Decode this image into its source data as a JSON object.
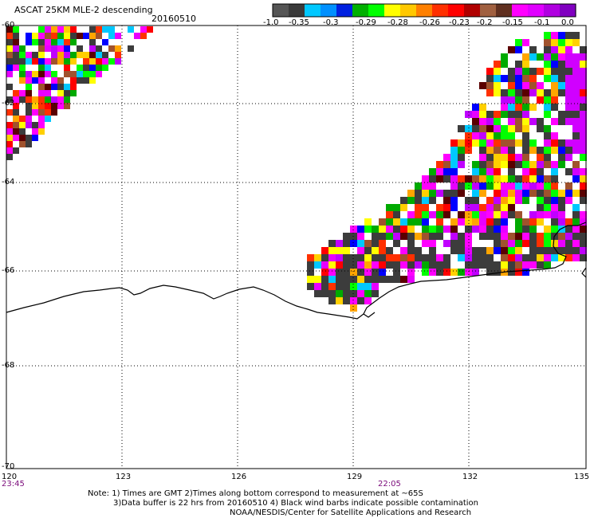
{
  "header": {
    "title": "ASCAT 25KM MLE-2 descending",
    "date": "20160510"
  },
  "colorbar": {
    "labels": [
      "-1.0",
      "-0.35",
      "-0.3",
      "-0.29",
      "-0.28",
      "-0.26",
      "-0.23",
      "-0.2",
      "-0.15",
      "-0.1",
      "0.0"
    ],
    "colors": [
      "#555555",
      "#3a3a3a",
      "#00c8ff",
      "#0090ff",
      "#0020e0",
      "#00b000",
      "#00ff00",
      "#ffff00",
      "#ffc800",
      "#ff8000",
      "#ff3000",
      "#ff0000",
      "#b00000",
      "#a06040",
      "#603020",
      "#ff00ff",
      "#e000ff",
      "#b000e0",
      "#8000c0"
    ]
  },
  "map": {
    "lat_labels": [
      "-60",
      "-62",
      "-64",
      "-66",
      "-68",
      "-70"
    ],
    "lon_labels": [
      "120",
      "123",
      "126",
      "129",
      "132",
      "135"
    ],
    "times": [
      "23:45",
      "22:05"
    ]
  },
  "note": {
    "line1": "Note: 1) Times are GMT 2)Times along bottom correspond to measurement at ~65S",
    "line2": "3)Data buffer is 22 hrs from 20160510 4) Black wind barbs indicate possible contamination",
    "line3": "NOAA/NESDIS/Center for Satellite Applications and Research"
  }
}
